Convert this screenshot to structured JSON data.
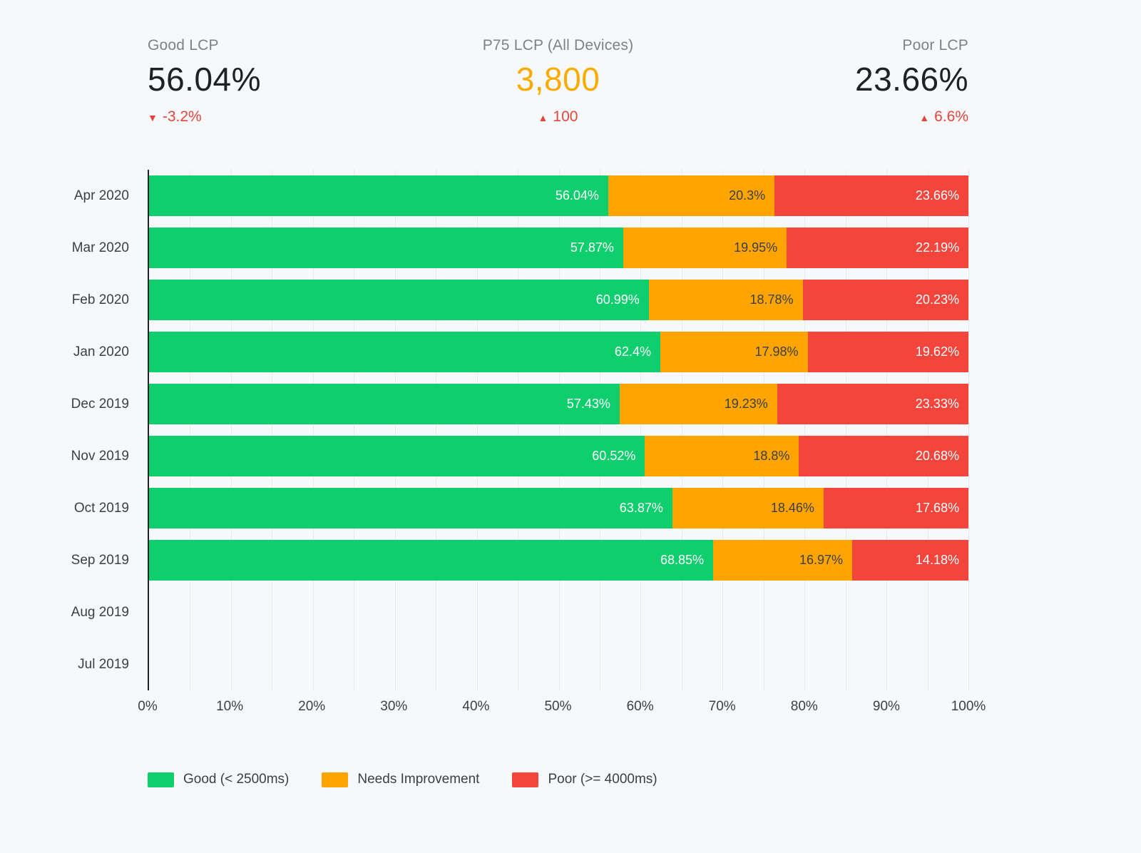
{
  "kpis": [
    {
      "label": "Good LCP",
      "value": "56.04%",
      "value_color": "#202124",
      "delta": "-3.2%",
      "delta_color": "#e5443c",
      "direction": "down"
    },
    {
      "label": "P75 LCP (All Devices)",
      "value": "3,800",
      "value_color": "#f9ab00",
      "delta": "100",
      "delta_color": "#e5443c",
      "direction": "up"
    },
    {
      "label": "Poor LCP",
      "value": "23.66%",
      "value_color": "#202124",
      "delta": "6.6%",
      "delta_color": "#e5443c",
      "direction": "up"
    }
  ],
  "chart_data": {
    "type": "bar",
    "orientation": "horizontal",
    "stacked": true,
    "title": "",
    "xlabel": "",
    "ylabel": "",
    "xlim": [
      0,
      100
    ],
    "grid": "vertical lines every 5%",
    "legend_position": "bottom",
    "categories": [
      "Apr 2020",
      "Mar 2020",
      "Feb 2020",
      "Jan 2020",
      "Dec 2019",
      "Nov 2019",
      "Oct 2019",
      "Sep 2019",
      "Aug 2019",
      "Jul 2019"
    ],
    "x_ticks": [
      "0%",
      "10%",
      "20%",
      "30%",
      "40%",
      "50%",
      "60%",
      "70%",
      "80%",
      "90%",
      "100%"
    ],
    "series": [
      {
        "name": "Good (< 2500ms)",
        "color": "#0fce6d",
        "label_color": "#ffffff",
        "values": [
          56.04,
          57.87,
          60.99,
          62.4,
          57.43,
          60.52,
          63.87,
          68.85,
          null,
          null
        ],
        "labels": [
          "56.04%",
          "57.87%",
          "60.99%",
          "62.4%",
          "57.43%",
          "60.52%",
          "63.87%",
          "68.85%",
          null,
          null
        ]
      },
      {
        "name": "Needs Improvement",
        "color": "#ffa400",
        "label_color": "#3c4043",
        "values": [
          20.3,
          19.95,
          18.78,
          17.98,
          19.23,
          18.8,
          18.46,
          16.97,
          null,
          null
        ],
        "labels": [
          "20.3%",
          "19.95%",
          "18.78%",
          "17.98%",
          "19.23%",
          "18.8%",
          "18.46%",
          "16.97%",
          null,
          null
        ]
      },
      {
        "name": "Poor (>= 4000ms)",
        "color": "#f4453c",
        "label_color": "#ffffff",
        "values": [
          23.66,
          22.19,
          20.23,
          19.62,
          23.33,
          20.68,
          17.68,
          14.18,
          null,
          null
        ],
        "labels": [
          "23.66%",
          "22.19%",
          "20.23%",
          "19.62%",
          "23.33%",
          "20.68%",
          "17.68%",
          "14.18%",
          null,
          null
        ]
      }
    ]
  }
}
